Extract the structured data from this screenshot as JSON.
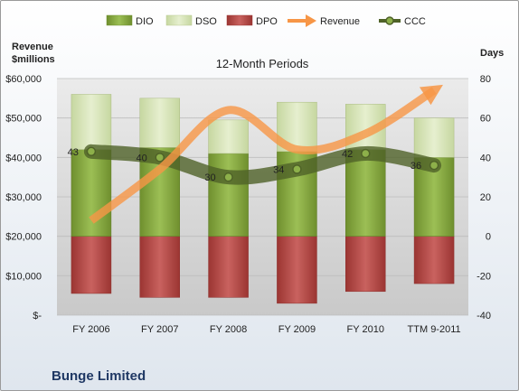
{
  "company": "Bunge Limited",
  "chart_data": {
    "type": "bar",
    "title": "12-Month Periods",
    "left_axis_label_line1": "Revenue",
    "left_axis_label_line2": "$millions",
    "right_axis_label": "Days",
    "categories": [
      "FY 2006",
      "FY 2007",
      "FY 2008",
      "FY 2009",
      "FY 2010",
      "TTM 9-2011"
    ],
    "left_ticks": [
      "$-",
      "$10,000",
      "$20,000",
      "$30,000",
      "$40,000",
      "$50,000",
      "$60,000"
    ],
    "right_ticks": [
      "-40",
      "-20",
      "0",
      "20",
      "40",
      "60",
      "80"
    ],
    "right_ylim": [
      -40,
      80
    ],
    "left_ylim": [
      0,
      60000
    ],
    "grid": true,
    "legend_position": "top",
    "series": [
      {
        "name": "DIO",
        "kind": "stacked-bar",
        "axis": "right",
        "color": "#8db04a",
        "values": [
          44,
          45,
          42,
          43,
          44,
          40
        ]
      },
      {
        "name": "DSO",
        "kind": "stacked-bar",
        "axis": "right",
        "color": "#d8e4bc",
        "values": [
          28,
          25,
          17,
          25,
          23,
          20
        ]
      },
      {
        "name": "DPO",
        "kind": "negative-bar",
        "axis": "right",
        "color": "#c0504d",
        "values": [
          -29,
          -31,
          -31,
          -34,
          -28,
          -24
        ]
      },
      {
        "name": "Revenue",
        "kind": "line-arrow",
        "axis": "left",
        "color": "#f79646",
        "values": [
          24000,
          37000,
          52000,
          42000,
          46000,
          57000
        ]
      },
      {
        "name": "CCC",
        "kind": "line",
        "axis": "right",
        "color": "#4f6228",
        "values": [
          43,
          40,
          30,
          34,
          42,
          36
        ]
      }
    ]
  }
}
